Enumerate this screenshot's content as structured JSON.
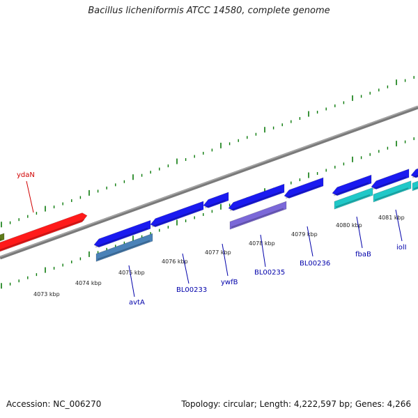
{
  "title": "Bacillus licheniformis ATCC 14580, complete genome",
  "footer": {
    "accession": "Accession: NC_006270",
    "summary": "Topology: circular; Length: 4,222,597 bp; Genes: 4,266"
  },
  "colors": {
    "backbone": "#7a7a7a",
    "tick": "#0a7a0a",
    "forward_gene_label": "#d00000",
    "reverse_gene_label": "#0000aa"
  },
  "scale": {
    "unit": "kbp",
    "tick_labels": [
      "4073 kbp",
      "4074 kbp",
      "4075 kbp",
      "4076 kbp",
      "4077 kbp",
      "4078 kbp",
      "4079 kbp",
      "4080 kbp",
      "4081 kbp"
    ]
  },
  "genes": {
    "labeled": [
      {
        "name": "ydaN",
        "strand": "+",
        "color": "#ff1a1a"
      },
      {
        "name": "avtA",
        "strand": "-",
        "color": "#4a82b8"
      },
      {
        "name": "BL00233",
        "strand": "-",
        "color": "#1a1af0"
      },
      {
        "name": "ywfB",
        "strand": "-",
        "color": "#1a1af0"
      },
      {
        "name": "BL00235",
        "strand": "-",
        "color": "#7b68d8"
      },
      {
        "name": "BL00236",
        "strand": "-",
        "color": "#1a1af0"
      },
      {
        "name": "fbaB",
        "strand": "-",
        "color": "#20c8c8"
      },
      {
        "name": "iolI",
        "strand": "-",
        "color": "#20c8c8"
      }
    ]
  }
}
